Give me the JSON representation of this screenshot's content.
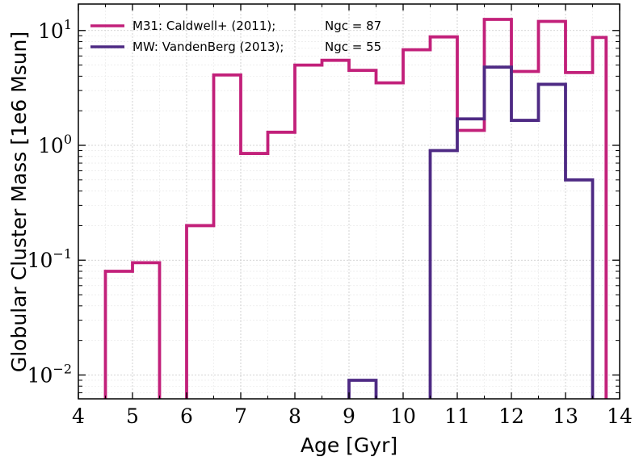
{
  "chart_data": {
    "type": "step",
    "xlabel": "Age [Gyr]",
    "ylabel": "Globular Cluster Mass [1e6 Msun]",
    "xlim": [
      4,
      14
    ],
    "ylim": [
      0.0062,
      17
    ],
    "yscale": "log",
    "grid": true,
    "legend_position": "top-left",
    "x_ticks": [
      4,
      5,
      6,
      7,
      8,
      9,
      10,
      11,
      12,
      13,
      14
    ],
    "x_tick_labels": [
      "4",
      "5",
      "6",
      "7",
      "8",
      "9",
      "10",
      "11",
      "12",
      "13",
      "14"
    ],
    "y_ticks": [
      0.01,
      0.1,
      1,
      10
    ],
    "y_tick_labels": [
      {
        "base": "10",
        "exp": "−2"
      },
      {
        "base": "10",
        "exp": "−1"
      },
      {
        "base": "10",
        "exp": "0"
      },
      {
        "base": "10",
        "exp": "1"
      }
    ],
    "bin_edges": [
      4.0,
      4.5,
      5.0,
      5.5,
      6.0,
      6.5,
      7.0,
      7.5,
      8.0,
      8.5,
      9.0,
      9.5,
      10.0,
      10.5,
      11.0,
      11.5,
      12.0,
      12.5,
      13.0,
      13.5,
      13.75
    ],
    "series": [
      {
        "legend_label": "M31: Caldwell+ (2011);",
        "legend_count": "Ngc = 87",
        "color": "#c2207a",
        "values": [
          0,
          0.08,
          0.095,
          0,
          0.2,
          4.1,
          0.85,
          1.3,
          5.0,
          5.5,
          4.5,
          3.5,
          6.8,
          8.8,
          1.35,
          12.5,
          4.4,
          12.0,
          4.3,
          8.7
        ]
      },
      {
        "legend_label": "MW: VandenBerg (2013);",
        "legend_count": "Ngc = 55",
        "color": "#4e2a84",
        "values": [
          0,
          0,
          0,
          0,
          0,
          0,
          0,
          0,
          0,
          0,
          0.009,
          0,
          0,
          0.9,
          1.7,
          4.8,
          1.65,
          3.4,
          0.5,
          0
        ]
      }
    ]
  }
}
